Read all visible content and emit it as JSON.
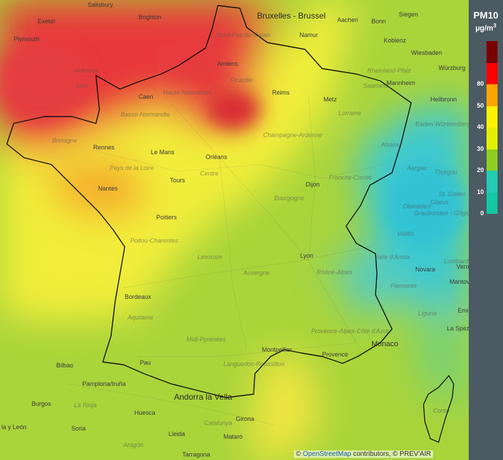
{
  "map": {
    "cities": [
      {
        "id": "salisbury",
        "name": "Salisbury"
      },
      {
        "id": "exeter",
        "name": "Exeter"
      },
      {
        "id": "plymouth",
        "name": "Plymouth"
      },
      {
        "id": "brighton",
        "name": "Brighton"
      },
      {
        "id": "bruxelles",
        "name": "Bruxelles - Brussel"
      },
      {
        "id": "aachen",
        "name": "Aachen"
      },
      {
        "id": "bonn",
        "name": "Bonn"
      },
      {
        "id": "siegen",
        "name": "Siegen"
      },
      {
        "id": "namur",
        "name": "Namur"
      },
      {
        "id": "koblenz",
        "name": "Koblenz"
      },
      {
        "id": "wiesbaden",
        "name": "Wiesbaden"
      },
      {
        "id": "wurzburg",
        "name": "Würzburg"
      },
      {
        "id": "amiens",
        "name": "Amiens"
      },
      {
        "id": "mannheim",
        "name": "Mannheim"
      },
      {
        "id": "caen",
        "name": "Caen"
      },
      {
        "id": "reims",
        "name": "Reims"
      },
      {
        "id": "metz",
        "name": "Metz"
      },
      {
        "id": "heilbronn",
        "name": "Heilbronn"
      },
      {
        "id": "rennes",
        "name": "Rennes"
      },
      {
        "id": "lemans",
        "name": "Le Mans"
      },
      {
        "id": "orleans",
        "name": "Orléans"
      },
      {
        "id": "nantes",
        "name": "Nantes"
      },
      {
        "id": "tours",
        "name": "Tours"
      },
      {
        "id": "dijon",
        "name": "Dijon"
      },
      {
        "id": "poitiers",
        "name": "Poitiers"
      },
      {
        "id": "lyon",
        "name": "Lyon"
      },
      {
        "id": "novara",
        "name": "Novara"
      },
      {
        "id": "bordeaux",
        "name": "Bordeaux"
      },
      {
        "id": "verona",
        "name": "Vero"
      },
      {
        "id": "mantova",
        "name": "Mantova"
      },
      {
        "id": "emilia",
        "name": "Emilia-Ro"
      },
      {
        "id": "laspezia",
        "name": "La Spezia"
      },
      {
        "id": "bilbao",
        "name": "Bilbao"
      },
      {
        "id": "pau",
        "name": "Pau"
      },
      {
        "id": "montpellier",
        "name": "Montpellier"
      },
      {
        "id": "provence",
        "name": "Provence"
      },
      {
        "id": "monaco",
        "name": "Monaco"
      },
      {
        "id": "pamplona",
        "name": "Pamplona/Iruña"
      },
      {
        "id": "andorra",
        "name": "Andorra la Vella"
      },
      {
        "id": "burgos",
        "name": "Burgos"
      },
      {
        "id": "huesca",
        "name": "Huesca"
      },
      {
        "id": "girona",
        "name": "Girona"
      },
      {
        "id": "leon",
        "name": "la y León"
      },
      {
        "id": "soria",
        "name": "Soria"
      },
      {
        "id": "lleida",
        "name": "Lleida"
      },
      {
        "id": "mataro",
        "name": "Mataró"
      },
      {
        "id": "tarragona",
        "name": "Tarragona"
      }
    ],
    "regions": [
      {
        "id": "nordpasdecalais",
        "name": "Nord-Pas-de-Calais"
      },
      {
        "id": "hautenormandie",
        "name": "Haute-Normandie"
      },
      {
        "id": "bassenormandie",
        "name": "Basse-Normandie"
      },
      {
        "id": "picardie",
        "name": "Picardie"
      },
      {
        "id": "bretagne",
        "name": "Bretagne"
      },
      {
        "id": "paysdelaloire",
        "name": "Pays de la Loire"
      },
      {
        "id": "centre",
        "name": "Centre"
      },
      {
        "id": "champagne",
        "name": "Champagne-Ardenne"
      },
      {
        "id": "lorraine",
        "name": "Lorraine"
      },
      {
        "id": "alsace",
        "name": "Alsace"
      },
      {
        "id": "bourgogne",
        "name": "Bourgogne"
      },
      {
        "id": "franchecomte",
        "name": "Franche-Comté"
      },
      {
        "id": "poitou",
        "name": "Poitou-Charentes"
      },
      {
        "id": "limousin",
        "name": "Limousin"
      },
      {
        "id": "auvergne",
        "name": "Auvergne"
      },
      {
        "id": "rhonealpes",
        "name": "Rhône-Alpes"
      },
      {
        "id": "aquitaine",
        "name": "Aquitaine"
      },
      {
        "id": "midipyrenees",
        "name": "Midi-Pyrénées"
      },
      {
        "id": "languedoc",
        "name": "Languedoc-Roussillon"
      },
      {
        "id": "paca",
        "name": "Provence-Alpes-Côte d'Azur"
      },
      {
        "id": "corse",
        "name": "Corse"
      },
      {
        "id": "lombardia",
        "name": "Lombardia"
      },
      {
        "id": "piemonte",
        "name": "Piemonte"
      },
      {
        "id": "liguria",
        "name": "Liguria"
      },
      {
        "id": "valledaosta",
        "name": "Valle d'Aosta"
      },
      {
        "id": "rheinland",
        "name": "Rheinland-Pfalz"
      },
      {
        "id": "saarland",
        "name": "Saarland"
      },
      {
        "id": "baden",
        "name": "Baden-Württemberg"
      },
      {
        "id": "aargau",
        "name": "Aargau"
      },
      {
        "id": "thurgau",
        "name": "Thurgau"
      },
      {
        "id": "stgallen",
        "name": "St. Gallen"
      },
      {
        "id": "glarus",
        "name": "Glarus"
      },
      {
        "id": "obwalden",
        "name": "Obwalden"
      },
      {
        "id": "graubunden",
        "name": "Graubünden - Grigion"
      },
      {
        "id": "wallis",
        "name": "Wallis"
      },
      {
        "id": "aragon",
        "name": "Aragón"
      },
      {
        "id": "lariota",
        "name": "La Rioja"
      },
      {
        "id": "catalunya",
        "name": "Catalunya"
      },
      {
        "id": "alderney",
        "name": "Alderney"
      },
      {
        "id": "sark",
        "name": "Sark"
      }
    ]
  },
  "legend": {
    "title": "PM10",
    "unit": "µg/m",
    "unit_sup": "3",
    "bins": [
      {
        "label": "0",
        "color": "#12c8a4"
      },
      {
        "label": "10",
        "color": "#22ccb2"
      },
      {
        "label": "20",
        "color": "#8ccf1e"
      },
      {
        "label": "30",
        "color": "#e4f000"
      },
      {
        "label": "40",
        "color": "#fff200"
      },
      {
        "label": "50",
        "color": "#ffa500"
      },
      {
        "label": "80",
        "color": "#ff0000"
      },
      {
        "label": "",
        "color": "#7a0000"
      }
    ]
  },
  "attribution": {
    "prefix": "©",
    "osm": "OpenStreetMap",
    "suffix": "contributors, © PREV'AIR"
  }
}
